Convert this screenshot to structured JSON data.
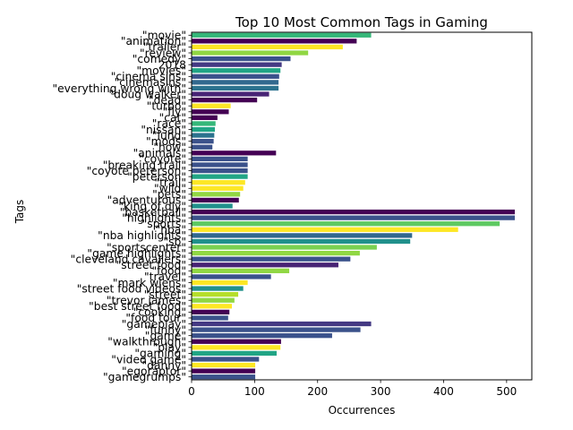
{
  "chart_data": {
    "type": "bar",
    "orientation": "horizontal",
    "title": "Top 10 Most Common Tags in Gaming",
    "xlabel": "Occurrences",
    "ylabel": "Tags",
    "xlim": [
      0,
      540
    ],
    "xticks": [
      0,
      100,
      200,
      300,
      400,
      500
    ],
    "grid": false,
    "legend": "none",
    "categories": [
      "\"movie\"",
      "\"animation\"",
      "\"trailer\"",
      "\"review\"",
      "\"comedy\"",
      "2018",
      "\"movies\"",
      "\"cinema sins\"",
      "\"cinemasins\"",
      "\"everything wrong with\"",
      "\"doug walker\"",
      "\"dead\"",
      "\"turbo\"",
      "\"fly\"",
      "\"cat\"",
      "\"race\"",
      "\"nissan\"",
      "\"lund\"",
      "\"mods\"",
      "\"how\"",
      "\"animals\"",
      "\"coyote\"",
      "\"breaking trail\"",
      "\"coyote peterson\"",
      "\"peterson\"",
      "\"trail\"",
      "\"wild\"",
      "\"pets\"",
      "\"adventurous\"",
      "\"king of diy\"",
      "\"basketball\"",
      "\"highlights\"",
      "\"sports\"",
      "\"nba\"",
      "\"nba highlights\"",
      "\"sb\"",
      "\"sportscenter\"",
      "\"game highlights\"",
      "\"cleveland cavaliers\"",
      "\"street food\"",
      "\"food\"",
      "\"travel\"",
      "\"mark wiens\"",
      "\"street food videos\"",
      "\"street\"",
      "\"trevor james\"",
      "\"best street food\"",
      "\"cooking\"",
      "\"food tour\"",
      "\"gameplay\"",
      "\"funny\"",
      "\"game\"",
      "\"walkthrough\"",
      "\"play\"",
      "\"gaming\"",
      "\"video game\"",
      "\"danny\"",
      "\"egoraptor\"",
      "\"gamegrumps\""
    ],
    "values": [
      285,
      262,
      240,
      185,
      157,
      143,
      141,
      139,
      138,
      138,
      123,
      104,
      62,
      59,
      41,
      38,
      37,
      36,
      35,
      33,
      134,
      89,
      89,
      89,
      89,
      85,
      82,
      77,
      75,
      65,
      513,
      513,
      489,
      423,
      350,
      347,
      294,
      267,
      252,
      233,
      155,
      126,
      89,
      82,
      74,
      68,
      64,
      60,
      58,
      285,
      268,
      223,
      142,
      141,
      135,
      107,
      101,
      101,
      101
    ],
    "colors": [
      "#35b779",
      "#440154",
      "#fde725",
      "#90d743",
      "#3b528b",
      "#443983",
      "#21a585",
      "#3b528b",
      "#31688e",
      "#2c728e",
      "#482475",
      "#440154",
      "#fde725",
      "#440154",
      "#440154",
      "#35b779",
      "#21a585",
      "#2c728e",
      "#3b528b",
      "#3b528b",
      "#440154",
      "#3b528b",
      "#3b528b",
      "#3b528b",
      "#21a585",
      "#fde725",
      "#fde725",
      "#90d743",
      "#440154",
      "#21918c",
      "#440154",
      "#3b528b",
      "#5ec962",
      "#fde725",
      "#31688e",
      "#21918c",
      "#7ad151",
      "#90d743",
      "#3b528b",
      "#482475",
      "#90d743",
      "#3b528b",
      "#fde725",
      "#21918c",
      "#b5de2b",
      "#90d743",
      "#fde725",
      "#440154",
      "#3b528b",
      "#443983",
      "#3b528b",
      "#3b528b",
      "#440154",
      "#fde725",
      "#21a585",
      "#3b528b",
      "#fde725",
      "#440154",
      "#3b528b"
    ]
  }
}
